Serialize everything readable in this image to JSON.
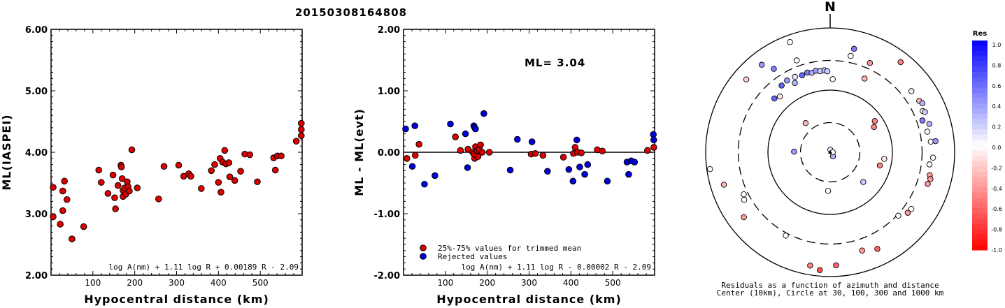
{
  "title": "20150308164808",
  "chart_data": [
    {
      "id": "ml-vs-distance",
      "type": "scatter",
      "xlabel": "Hypocentral distance (km)",
      "ylabel": "ML(IASPEI)",
      "xlim": [
        0,
        600
      ],
      "ylim": [
        2.0,
        6.0
      ],
      "xticks": [
        "100",
        "200",
        "300",
        "400",
        "500"
      ],
      "yticks": [
        "2.00",
        "3.00",
        "4.00",
        "5.00",
        "6.00"
      ],
      "formula": "log A(nm) + 1.11 log R + 0.00189 R - 2.09",
      "color": "#dd0000",
      "points": [
        [
          5,
          3.43
        ],
        [
          5,
          2.95
        ],
        [
          22,
          2.83
        ],
        [
          28,
          3.37
        ],
        [
          28,
          3.05
        ],
        [
          32,
          3.53
        ],
        [
          38,
          3.23
        ],
        [
          50,
          2.59
        ],
        [
          78,
          2.79
        ],
        [
          114,
          3.71
        ],
        [
          120,
          3.51
        ],
        [
          136,
          3.33
        ],
        [
          148,
          3.63
        ],
        [
          152,
          3.26
        ],
        [
          154,
          3.08
        ],
        [
          160,
          3.46
        ],
        [
          167,
          3.79
        ],
        [
          168,
          3.76
        ],
        [
          170,
          3.57
        ],
        [
          172,
          3.38
        ],
        [
          172,
          3.28
        ],
        [
          176,
          3.42
        ],
        [
          179,
          3.32
        ],
        [
          182,
          3.52
        ],
        [
          184,
          3.44
        ],
        [
          187,
          3.37
        ],
        [
          193,
          4.04
        ],
        [
          206,
          3.42
        ],
        [
          257,
          3.24
        ],
        [
          270,
          3.77
        ],
        [
          305,
          3.79
        ],
        [
          317,
          3.61
        ],
        [
          329,
          3.65
        ],
        [
          334,
          3.61
        ],
        [
          359,
          3.41
        ],
        [
          383,
          3.7
        ],
        [
          391,
          3.8
        ],
        [
          400,
          3.51
        ],
        [
          404,
          3.9
        ],
        [
          406,
          3.35
        ],
        [
          410,
          3.84
        ],
        [
          415,
          4.03
        ],
        [
          418,
          3.81
        ],
        [
          425,
          3.83
        ],
        [
          427,
          3.6
        ],
        [
          439,
          3.54
        ],
        [
          453,
          3.69
        ],
        [
          463,
          3.97
        ],
        [
          475,
          3.96
        ],
        [
          493,
          3.52
        ],
        [
          532,
          3.91
        ],
        [
          536,
          3.71
        ],
        [
          541,
          3.94
        ],
        [
          550,
          3.94
        ],
        [
          586,
          4.18
        ],
        [
          598,
          4.47
        ],
        [
          598,
          4.37
        ],
        [
          598,
          4.27
        ]
      ]
    },
    {
      "id": "residual-vs-distance",
      "type": "scatter",
      "xlabel": "Hypocentral distance (km)",
      "ylabel": "ML - ML(evt)",
      "xlim": [
        0,
        600
      ],
      "ylim": [
        -2.0,
        2.0
      ],
      "xticks": [
        "100",
        "200",
        "300",
        "400",
        "500"
      ],
      "yticks": [
        "-2.00",
        "-1.00",
        "0.00",
        "1.00",
        "2.00"
      ],
      "ml_label": "ML= 3.04",
      "legend": [
        "25%-75% values for trimmed mean",
        "Rejected values"
      ],
      "formula": "log A(nm) + 1.11 log R - 0.00002 R - 2.09",
      "trimmed_color": "#dd0000",
      "rejected_color": "#0000dd",
      "trimmed": [
        [
          8,
          -0.1
        ],
        [
          28,
          -0.05
        ],
        [
          37,
          0.13
        ],
        [
          124,
          0.25
        ],
        [
          136,
          0.03
        ],
        [
          154,
          0.05
        ],
        [
          165,
          0.0
        ],
        [
          168,
          -0.03
        ],
        [
          170,
          -0.1
        ],
        [
          172,
          0.09
        ],
        [
          174,
          -0.05
        ],
        [
          176,
          0.03
        ],
        [
          178,
          -0.07
        ],
        [
          181,
          0.05
        ],
        [
          184,
          0.12
        ],
        [
          188,
          0.0
        ],
        [
          205,
          0.0
        ],
        [
          305,
          -0.03
        ],
        [
          315,
          -0.02
        ],
        [
          333,
          -0.05
        ],
        [
          382,
          -0.08
        ],
        [
          406,
          -0.02
        ],
        [
          410,
          0.08
        ],
        [
          416,
          0.0
        ],
        [
          425,
          -0.01
        ],
        [
          463,
          0.04
        ],
        [
          475,
          0.02
        ],
        [
          583,
          0.03
        ],
        [
          598,
          0.08
        ]
      ],
      "rejected": [
        [
          5,
          0.38
        ],
        [
          21,
          -0.23
        ],
        [
          27,
          0.43
        ],
        [
          50,
          -0.52
        ],
        [
          75,
          -0.38
        ],
        [
          112,
          0.46
        ],
        [
          148,
          0.3
        ],
        [
          153,
          -0.25
        ],
        [
          168,
          0.43
        ],
        [
          170,
          0.4
        ],
        [
          172,
          0.38
        ],
        [
          192,
          0.63
        ],
        [
          255,
          -0.29
        ],
        [
          272,
          0.21
        ],
        [
          307,
          0.17
        ],
        [
          344,
          -0.31
        ],
        [
          395,
          -0.28
        ],
        [
          405,
          -0.47
        ],
        [
          414,
          0.2
        ],
        [
          421,
          -0.24
        ],
        [
          433,
          -0.36
        ],
        [
          440,
          -0.2
        ],
        [
          487,
          -0.47
        ],
        [
          534,
          -0.16
        ],
        [
          538,
          -0.36
        ],
        [
          544,
          -0.14
        ],
        [
          552,
          -0.16
        ],
        [
          597,
          0.29
        ],
        [
          598,
          0.2
        ]
      ]
    },
    {
      "id": "azimuth-distance-residuals",
      "type": "scatter",
      "projection": "polar-azimuth",
      "north_label": "N",
      "caption_line1": "Residuals as a function of azimuth and distance",
      "caption_line2": "Center (10km), Circle at 30, 100, 300 and 1000 km",
      "ring_distances_km": [
        30,
        100,
        300,
        1000
      ],
      "ring_styles": [
        "dashed",
        "solid",
        "dashed",
        "solid"
      ],
      "center_km": 10,
      "colorbar": {
        "title": "Res",
        "ticks": [
          "1.0",
          "0.8",
          "0.6",
          "0.4",
          "0.2",
          "0.0",
          "-0.2",
          "-0.4",
          "-0.6",
          "-0.8",
          "-1.0"
        ]
      },
      "stations": [
        {
          "azimuth": 5,
          "distance_km": 11,
          "residual": 0.1
        },
        {
          "azimuth": 145,
          "distance_km": 12,
          "residual": 0.3
        },
        {
          "azimuth": 90,
          "distance_km": 11,
          "residual": 0.0
        },
        {
          "azimuth": 271,
          "distance_km": 38,
          "residual": 0.4
        },
        {
          "azimuth": 320,
          "distance_km": 41,
          "residual": -0.3
        },
        {
          "azimuth": 183,
          "distance_km": 42,
          "residual": 0.0
        },
        {
          "azimuth": 132,
          "distance_km": 52,
          "residual": 0.2
        },
        {
          "azimuth": 55,
          "distance_km": 75,
          "residual": -0.5
        },
        {
          "azimuth": 60,
          "distance_km": 65,
          "residual": -0.5
        },
        {
          "azimuth": 2,
          "distance_km": 150,
          "residual": 0.0
        },
        {
          "azimuth": 324,
          "distance_km": 212,
          "residual": 0.6
        },
        {
          "azimuth": 329,
          "distance_km": 222,
          "residual": 0.4
        },
        {
          "azimuth": 335,
          "distance_km": 218,
          "residual": 0.1
        },
        {
          "azimuth": 340,
          "distance_km": 208,
          "residual": 0.6
        },
        {
          "azimuth": 344,
          "distance_km": 216,
          "residual": 0.5
        },
        {
          "azimuth": 347,
          "distance_km": 205,
          "residual": 0.3
        },
        {
          "azimuth": 350,
          "distance_km": 214,
          "residual": 0.4
        },
        {
          "azimuth": 353,
          "distance_km": 206,
          "residual": 0.2
        },
        {
          "azimuth": 356,
          "distance_km": 210,
          "residual": 0.3
        },
        {
          "azimuth": 358,
          "distance_km": 201,
          "residual": 0.2
        },
        {
          "azimuth": 333,
          "distance_km": 178,
          "residual": 0.3
        },
        {
          "azimuth": 318,
          "distance_km": 161,
          "residual": -0.1
        },
        {
          "azimuth": 314,
          "distance_km": 176,
          "residual": 0.6
        },
        {
          "azimuth": 326,
          "distance_km": 415,
          "residual": 0.5
        },
        {
          "azimuth": 340,
          "distance_km": 373,
          "residual": 0.0
        },
        {
          "azimuth": 12,
          "distance_km": 385,
          "residual": 0.0
        },
        {
          "azimuth": 13,
          "distance_km": 510,
          "residual": 0.5
        },
        {
          "azimuth": 24,
          "distance_km": 372,
          "residual": -0.4
        },
        {
          "azimuth": 25,
          "distance_km": 203,
          "residual": -0.3
        },
        {
          "azimuth": 53,
          "distance_km": 431,
          "residual": -0.1
        },
        {
          "azimuth": 60,
          "distance_km": 449,
          "residual": -0.3
        },
        {
          "azimuth": 62,
          "distance_km": 477,
          "residual": 0.3
        },
        {
          "azimuth": 66,
          "distance_km": 425,
          "residual": 0.0
        },
        {
          "azimuth": 67,
          "distance_km": 451,
          "residual": 0.2
        },
        {
          "azimuth": 71,
          "distance_km": 370,
          "residual": 0.5
        },
        {
          "azimuth": 74,
          "distance_km": 455,
          "residual": 0.3
        },
        {
          "azimuth": 78,
          "distance_km": 395,
          "residual": 0.0
        },
        {
          "azimuth": 84,
          "distance_km": 422,
          "residual": 0.0
        },
        {
          "azimuth": 84,
          "distance_km": 504,
          "residual": 0.4
        },
        {
          "azimuth": 93,
          "distance_km": 452,
          "residual": 0.0
        },
        {
          "azimuth": 97,
          "distance_km": 405,
          "residual": 0.0
        },
        {
          "azimuth": 103,
          "distance_km": 439,
          "residual": -0.4
        },
        {
          "azimuth": 105,
          "distance_km": 464,
          "residual": -0.4
        },
        {
          "azimuth": 108,
          "distance_km": 445,
          "residual": -0.4
        },
        {
          "azimuth": 97,
          "distance_km": 75,
          "residual": -0.1
        },
        {
          "azimuth": 105,
          "distance_km": 67,
          "residual": -0.5
        },
        {
          "azimuth": 125,
          "distance_km": 391,
          "residual": 0.0
        },
        {
          "azimuth": 133,
          "distance_km": 314,
          "residual": 0.0
        },
        {
          "azimuth": 128,
          "distance_km": 382,
          "residual": -0.4
        },
        {
          "azimuth": 154,
          "distance_km": 536,
          "residual": -0.6
        },
        {
          "azimuth": 162,
          "distance_km": 460,
          "residual": -0.4
        },
        {
          "azimuth": 177,
          "distance_km": 665,
          "residual": -0.6
        },
        {
          "azimuth": 185,
          "distance_km": 800,
          "residual": -0.7
        },
        {
          "azimuth": 190,
          "distance_km": 710,
          "residual": -0.5
        },
        {
          "azimuth": 208,
          "distance_km": 330,
          "residual": 0.0
        },
        {
          "azimuth": 233,
          "distance_km": 545,
          "residual": -0.4
        },
        {
          "azimuth": 241,
          "distance_km": 380,
          "residual": 0.0
        },
        {
          "azimuth": 244,
          "distance_km": 350,
          "residual": 0.0
        },
        {
          "azimuth": 253,
          "distance_km": 610,
          "residual": -0.3
        },
        {
          "azimuth": 262,
          "distance_km": 890,
          "residual": 0.0
        },
        {
          "azimuth": 311,
          "distance_km": 610,
          "residual": -0.2
        },
        {
          "azimuth": 322,
          "distance_km": 610,
          "residual": 0.4
        },
        {
          "azimuth": 340,
          "distance_km": 770,
          "residual": 0.0
        },
        {
          "azimuth": 38,
          "distance_km": 690,
          "residual": -0.5
        }
      ]
    }
  ]
}
